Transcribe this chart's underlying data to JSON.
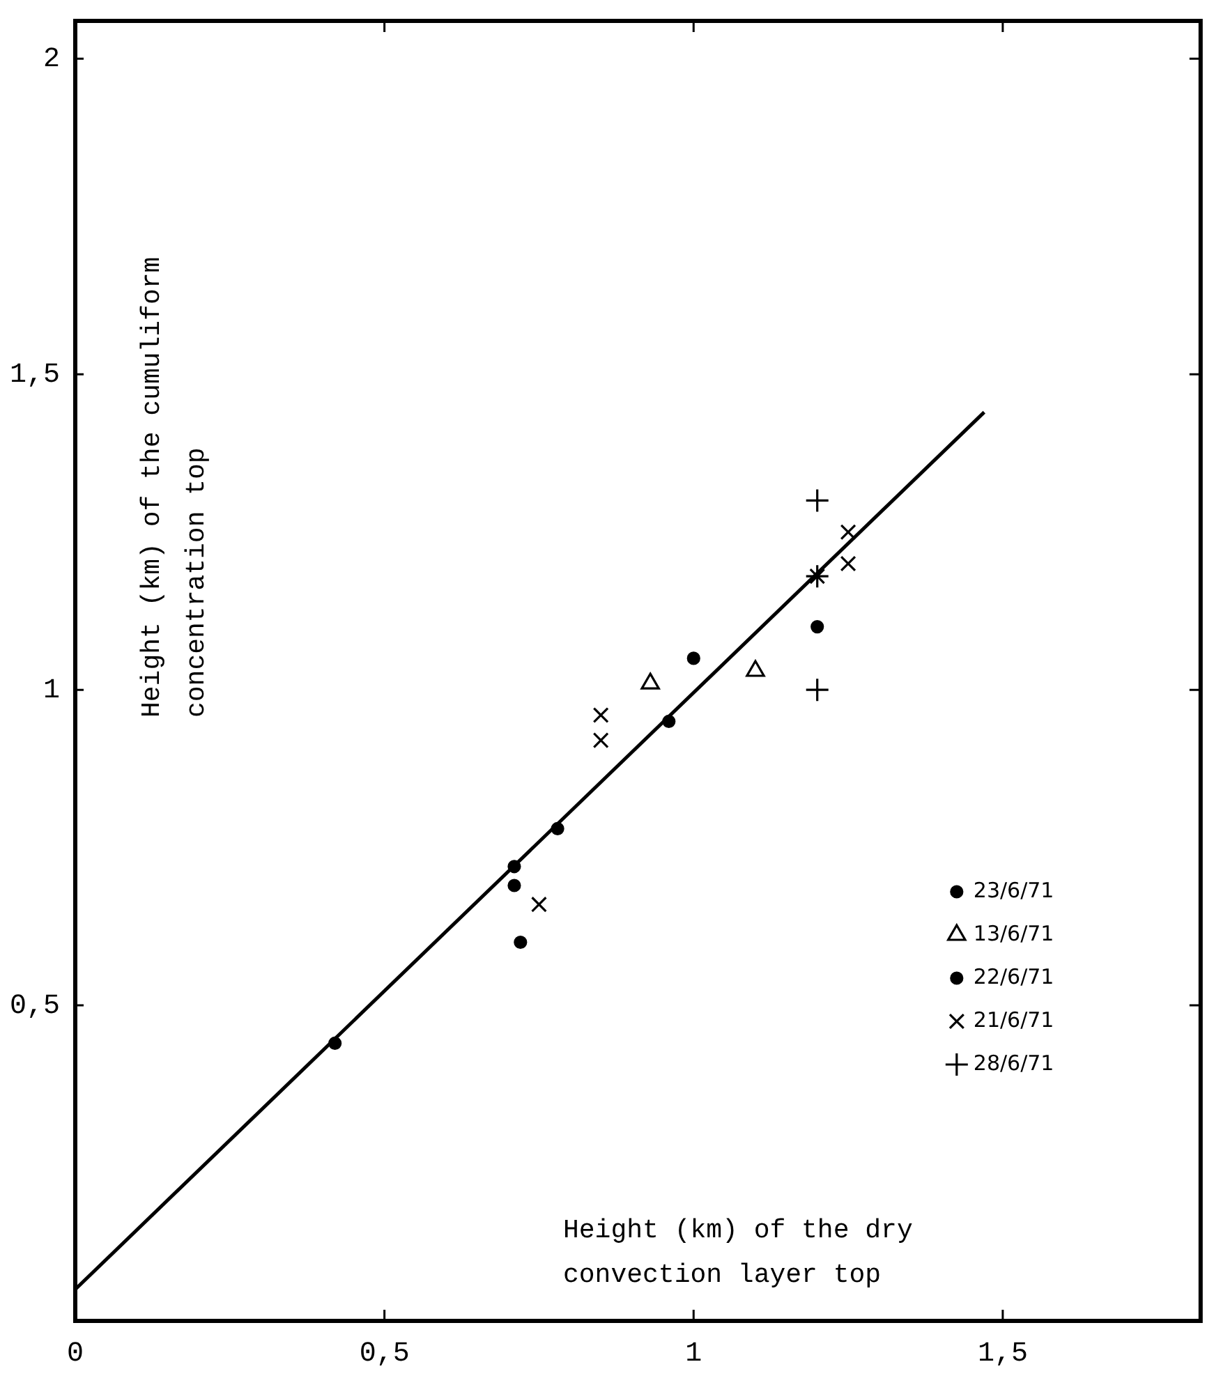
{
  "chart_data": {
    "type": "scatter",
    "xlabel": "Height (km) of the dry convection layer top",
    "ylabel": "Height (km) of the cumuliform concentration top",
    "xlim": [
      0,
      1.82
    ],
    "ylim": [
      0,
      2.06
    ],
    "xticks": [
      0,
      {
        "value": 0.5,
        "label": "0,5"
      },
      1,
      {
        "value": 1.5,
        "label": "1,5"
      }
    ],
    "yticks": [
      {
        "value": 0.5,
        "label": "0,5"
      },
      1,
      {
        "value": 1.5,
        "label": "1,5"
      },
      2
    ],
    "grid": false,
    "legend": "right",
    "series": [
      {
        "name": "23/6/71",
        "color": "#000000",
        "marker": "circle",
        "x": [
          0.71,
          0.71,
          0.72,
          0.78,
          0.96
        ],
        "values": [
          0.72,
          0.69,
          0.6,
          0.78,
          0.95
        ]
      },
      {
        "name": "13/6/71",
        "color": "#000000",
        "marker": "triangle",
        "x": [
          0.93,
          1.1
        ],
        "values": [
          1.01,
          1.03
        ]
      },
      {
        "name": "22/6/71",
        "color": "#000000",
        "marker": "circle",
        "x": [
          0.42,
          1.0,
          1.2
        ],
        "values": [
          0.44,
          1.05,
          1.1
        ]
      },
      {
        "name": "21/6/71",
        "color": "#000000",
        "marker": "cross",
        "x": [
          0.75,
          0.85,
          0.85,
          1.2,
          1.25,
          1.25
        ],
        "values": [
          0.66,
          0.96,
          0.92,
          1.18,
          1.25,
          1.2
        ]
      },
      {
        "name": "28/6/71",
        "color": "#000000",
        "marker": "plus",
        "x": [
          1.2,
          1.2,
          1.2
        ],
        "values": [
          1.3,
          1.18,
          1.0
        ]
      },
      {
        "type": "line",
        "color": "#000000",
        "marker": "none",
        "x": [
          0,
          1.47
        ],
        "values": [
          0.05,
          1.44
        ]
      }
    ]
  }
}
